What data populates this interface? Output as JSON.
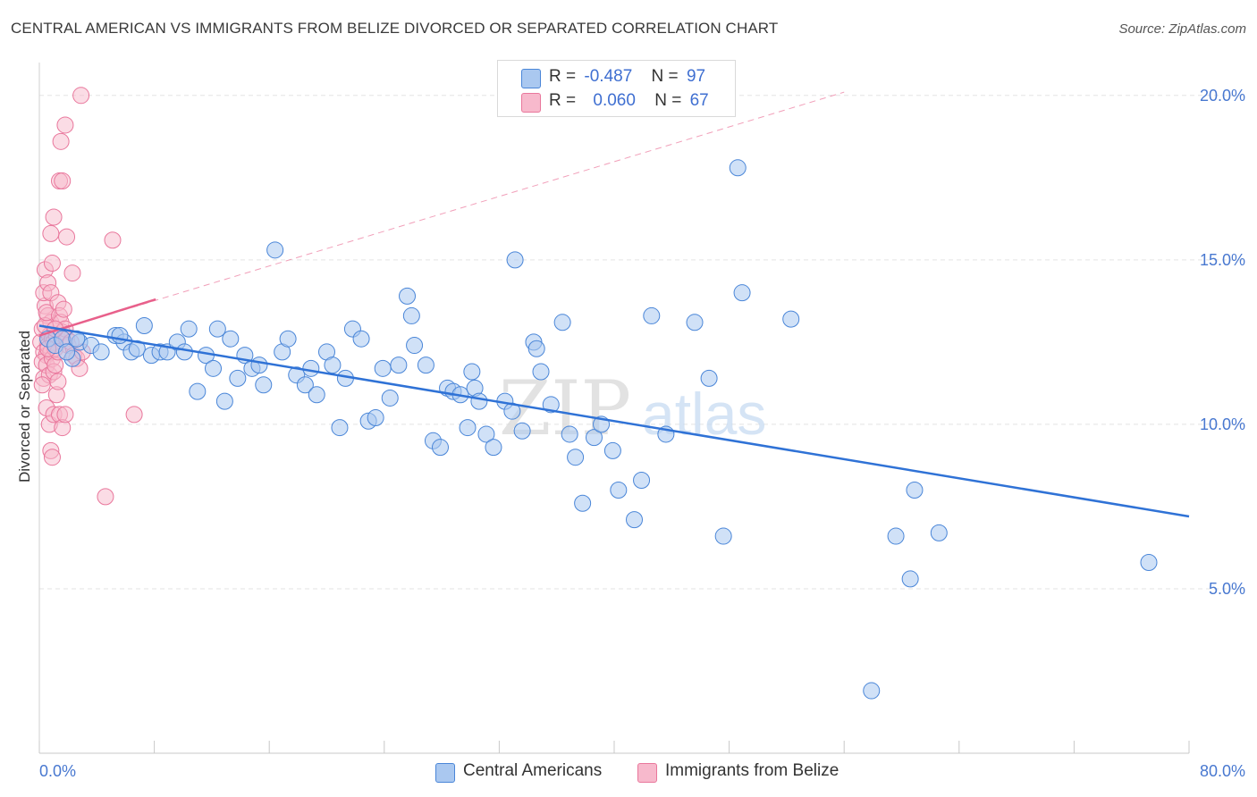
{
  "header": {
    "title": "CENTRAL AMERICAN VS IMMIGRANTS FROM BELIZE DIVORCED OR SEPARATED CORRELATION CHART",
    "source": "Source: ZipAtlas.com"
  },
  "legend": {
    "rows": [
      {
        "r_label": "R =",
        "r_value": "-0.487",
        "n_label": "N =",
        "n_value": "97"
      },
      {
        "r_label": "R =",
        "r_value": "0.060",
        "n_label": "N =",
        "n_value": "67"
      }
    ]
  },
  "watermark": {
    "zip": "ZIP",
    "atlas": "atlas"
  },
  "colors": {
    "blue_fill": "#aac8f0",
    "blue_stroke": "#4a86d8",
    "blue_line": "#2f72d6",
    "pink_fill": "#f7b9cc",
    "pink_stroke": "#e9779c",
    "pink_line": "#e8608b",
    "axis_text": "#4878d0",
    "grid": "#e3e3e3"
  },
  "chart_data": {
    "type": "scatter",
    "title": "CENTRAL AMERICAN VS IMMIGRANTS FROM BELIZE DIVORCED OR SEPARATED CORRELATION CHART",
    "xlabel": "",
    "ylabel": "Divorced or Separated",
    "xlim": [
      0,
      80
    ],
    "ylim": [
      0,
      21
    ],
    "x_tick_labels": [
      "0.0%",
      "80.0%"
    ],
    "y_ticks": [
      5,
      10,
      15,
      20
    ],
    "y_tick_labels": [
      "5.0%",
      "10.0%",
      "15.0%",
      "20.0%"
    ],
    "grid": true,
    "legend_position": "top-center",
    "series": [
      {
        "name": "Central Americans",
        "stats": {
          "R": -0.487,
          "N": 97
        },
        "trend": {
          "x": [
            0,
            80
          ],
          "y": [
            13.0,
            7.2
          ]
        },
        "points": [
          [
            0.6,
            12.6
          ],
          [
            1.1,
            12.4
          ],
          [
            1.6,
            12.6
          ],
          [
            2.3,
            12.0
          ],
          [
            2.8,
            12.5
          ],
          [
            3.6,
            12.4
          ],
          [
            4.3,
            12.2
          ],
          [
            5.3,
            12.7
          ],
          [
            5.9,
            12.5
          ],
          [
            6.4,
            12.2
          ],
          [
            6.8,
            12.3
          ],
          [
            7.3,
            13.0
          ],
          [
            7.8,
            12.1
          ],
          [
            8.4,
            12.2
          ],
          [
            8.9,
            12.2
          ],
          [
            9.6,
            12.5
          ],
          [
            10.1,
            12.2
          ],
          [
            10.4,
            12.9
          ],
          [
            11.0,
            11.0
          ],
          [
            11.6,
            12.1
          ],
          [
            12.1,
            11.7
          ],
          [
            12.4,
            12.9
          ],
          [
            12.9,
            10.7
          ],
          [
            13.3,
            12.6
          ],
          [
            13.8,
            11.4
          ],
          [
            14.3,
            12.1
          ],
          [
            14.8,
            11.7
          ],
          [
            15.3,
            11.8
          ],
          [
            15.6,
            11.2
          ],
          [
            16.4,
            15.3
          ],
          [
            16.9,
            12.2
          ],
          [
            17.3,
            12.6
          ],
          [
            17.9,
            11.5
          ],
          [
            18.5,
            11.2
          ],
          [
            18.9,
            11.7
          ],
          [
            19.3,
            10.9
          ],
          [
            20.0,
            12.2
          ],
          [
            20.4,
            11.8
          ],
          [
            20.9,
            9.9
          ],
          [
            21.3,
            11.4
          ],
          [
            21.8,
            12.9
          ],
          [
            22.4,
            12.6
          ],
          [
            22.9,
            10.1
          ],
          [
            23.4,
            10.2
          ],
          [
            23.9,
            11.7
          ],
          [
            24.4,
            10.8
          ],
          [
            25.0,
            11.8
          ],
          [
            25.6,
            13.9
          ],
          [
            25.9,
            13.3
          ],
          [
            26.9,
            11.8
          ],
          [
            27.4,
            9.5
          ],
          [
            27.9,
            9.3
          ],
          [
            28.4,
            11.1
          ],
          [
            28.8,
            11.0
          ],
          [
            29.3,
            10.9
          ],
          [
            29.8,
            9.9
          ],
          [
            30.3,
            11.1
          ],
          [
            30.6,
            10.7
          ],
          [
            31.1,
            9.7
          ],
          [
            31.6,
            9.3
          ],
          [
            32.4,
            10.7
          ],
          [
            32.9,
            10.4
          ],
          [
            33.1,
            15.0
          ],
          [
            33.6,
            9.8
          ],
          [
            34.4,
            12.5
          ],
          [
            34.9,
            11.6
          ],
          [
            35.6,
            10.6
          ],
          [
            36.4,
            13.1
          ],
          [
            36.9,
            9.7
          ],
          [
            37.3,
            9.0
          ],
          [
            37.8,
            7.6
          ],
          [
            38.6,
            9.6
          ],
          [
            39.1,
            10.0
          ],
          [
            39.9,
            9.2
          ],
          [
            40.3,
            8.0
          ],
          [
            41.4,
            7.1
          ],
          [
            41.9,
            8.3
          ],
          [
            42.6,
            13.3
          ],
          [
            43.6,
            9.7
          ],
          [
            45.6,
            13.1
          ],
          [
            46.6,
            11.4
          ],
          [
            47.6,
            6.6
          ],
          [
            48.6,
            17.8
          ],
          [
            48.9,
            14.0
          ],
          [
            52.3,
            13.2
          ],
          [
            57.9,
            1.9
          ],
          [
            59.6,
            6.6
          ],
          [
            60.6,
            5.3
          ],
          [
            60.9,
            8.0
          ],
          [
            62.6,
            6.7
          ],
          [
            77.2,
            5.8
          ],
          [
            5.6,
            12.7
          ],
          [
            2.6,
            12.6
          ],
          [
            1.9,
            12.2
          ],
          [
            34.6,
            12.3
          ],
          [
            30.1,
            11.6
          ],
          [
            26.1,
            12.4
          ]
        ]
      },
      {
        "name": "Immigrants from Belize",
        "stats": {
          "R": 0.06,
          "N": 67
        },
        "trend": {
          "x": [
            0,
            8.1
          ],
          "y": [
            12.7,
            13.8
          ]
        },
        "trend_extended": {
          "x": [
            0,
            56
          ],
          "y": [
            12.7,
            20.1
          ]
        },
        "points": [
          [
            0.1,
            12.5
          ],
          [
            0.2,
            12.9
          ],
          [
            0.3,
            12.2
          ],
          [
            0.4,
            13.6
          ],
          [
            0.5,
            12.1
          ],
          [
            0.6,
            13.3
          ],
          [
            0.7,
            12.7
          ],
          [
            0.8,
            13.1
          ],
          [
            0.2,
            11.9
          ],
          [
            0.3,
            11.4
          ],
          [
            0.4,
            13.0
          ],
          [
            0.5,
            11.8
          ],
          [
            0.6,
            12.4
          ],
          [
            0.7,
            11.5
          ],
          [
            0.8,
            12.2
          ],
          [
            0.9,
            12.6
          ],
          [
            0.3,
            14.0
          ],
          [
            0.4,
            14.7
          ],
          [
            0.6,
            14.3
          ],
          [
            0.8,
            14.0
          ],
          [
            0.5,
            13.4
          ],
          [
            0.9,
            12.0
          ],
          [
            1.0,
            12.5
          ],
          [
            1.1,
            12.3
          ],
          [
            1.2,
            12.7
          ],
          [
            1.3,
            13.7
          ],
          [
            1.4,
            13.3
          ],
          [
            1.5,
            13.1
          ],
          [
            1.6,
            12.8
          ],
          [
            1.7,
            13.5
          ],
          [
            1.8,
            12.9
          ],
          [
            1.9,
            12.6
          ],
          [
            0.2,
            11.2
          ],
          [
            0.5,
            10.5
          ],
          [
            0.7,
            10.0
          ],
          [
            1.0,
            10.3
          ],
          [
            1.2,
            10.9
          ],
          [
            1.4,
            10.3
          ],
          [
            1.6,
            9.9
          ],
          [
            1.8,
            10.3
          ],
          [
            0.8,
            9.2
          ],
          [
            0.9,
            9.0
          ],
          [
            1.0,
            11.6
          ],
          [
            1.1,
            11.8
          ],
          [
            1.3,
            11.3
          ],
          [
            2.0,
            12.4
          ],
          [
            2.2,
            12.5
          ],
          [
            2.4,
            12.1
          ],
          [
            2.6,
            12.0
          ],
          [
            2.8,
            11.7
          ],
          [
            3.0,
            12.2
          ],
          [
            2.3,
            14.6
          ],
          [
            1.4,
            17.4
          ],
          [
            1.6,
            17.4
          ],
          [
            1.5,
            18.6
          ],
          [
            1.8,
            19.1
          ],
          [
            2.9,
            20.0
          ],
          [
            1.0,
            16.3
          ],
          [
            0.8,
            15.8
          ],
          [
            1.9,
            15.7
          ],
          [
            5.1,
            15.6
          ],
          [
            6.6,
            10.3
          ],
          [
            4.6,
            7.8
          ],
          [
            0.9,
            14.9
          ],
          [
            1.3,
            12.2
          ],
          [
            0.6,
            12.3
          ],
          [
            1.1,
            12.9
          ]
        ]
      }
    ]
  }
}
